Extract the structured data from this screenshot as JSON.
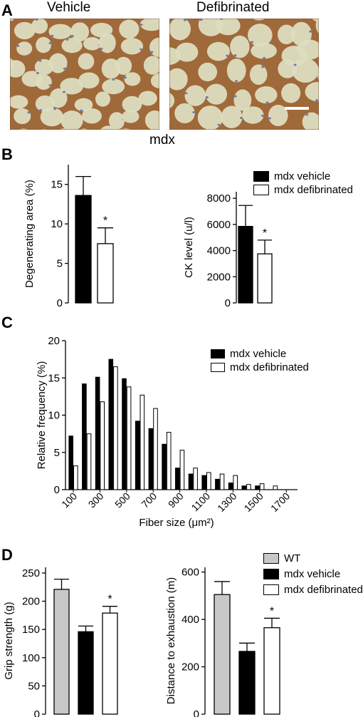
{
  "panels": {
    "a": "A",
    "b": "B",
    "c": "C",
    "d": "D"
  },
  "micrographs": {
    "left_title": "Vehicle",
    "right_title": "Defibrinated",
    "caption": "mdx",
    "colors": {
      "background": "#ddddc0",
      "membrane": "#a0693a",
      "nuclei": "#6f79ad"
    }
  },
  "legend_b": [
    "mdx vehicle",
    "mdx defibrinated"
  ],
  "legend_c": [
    "mdx vehicle",
    "mdx defibrinated"
  ],
  "legend_d": [
    "WT",
    "mdx vehicle",
    "mdx defibrinated"
  ],
  "colors": {
    "wt": "#c8c8c8",
    "vehicle": "#000000",
    "defibrinated": "#ffffff"
  },
  "chart_data": [
    {
      "id": "b1",
      "type": "bar",
      "ylabel": "Degenerating area (%)",
      "ylim": [
        0,
        17.5
      ],
      "yticks": [
        0,
        5,
        10,
        15
      ],
      "series": [
        {
          "name": "mdx vehicle",
          "values": [
            13.6
          ]
        },
        {
          "name": "mdx defibrinated",
          "values": [
            7.5
          ]
        }
      ],
      "errors": [
        2.4,
        2.0
      ],
      "annotations": [
        "",
        "*"
      ]
    },
    {
      "id": "b2",
      "type": "bar",
      "ylabel": "CK level (u/l)",
      "ylim": [
        0,
        8500
      ],
      "yticks": [
        0,
        2000,
        4000,
        6000,
        8000
      ],
      "series": [
        {
          "name": "mdx vehicle",
          "values": [
            5850
          ]
        },
        {
          "name": "mdx defibrinated",
          "values": [
            3750
          ]
        }
      ],
      "errors": [
        1600,
        1050
      ],
      "annotations": [
        "",
        "*"
      ]
    },
    {
      "id": "c",
      "type": "bar",
      "xlabel": "Fiber size (μm²)",
      "ylabel": "Relative frequency (%)",
      "ylim": [
        0,
        20
      ],
      "yticks": [
        0,
        5,
        10,
        15,
        20
      ],
      "categories": [
        100,
        200,
        300,
        400,
        500,
        600,
        700,
        800,
        900,
        1000,
        1100,
        1200,
        1300,
        1400,
        1500,
        1600,
        1700
      ],
      "tick_labels": [
        "100",
        "300",
        "500",
        "700",
        "900",
        "1100",
        "1300",
        "1500",
        "1700"
      ],
      "series": [
        {
          "name": "mdx vehicle",
          "values": [
            7.2,
            14.2,
            15.1,
            17.5,
            14.9,
            9.2,
            8.2,
            6.1,
            2.9,
            2.1,
            1.9,
            1.4,
            0.9,
            0.5,
            0.5,
            0,
            0
          ]
        },
        {
          "name": "mdx defibrinated",
          "values": [
            3.2,
            7.5,
            11.8,
            16.5,
            13.8,
            12.7,
            10.9,
            7.7,
            5.3,
            2.9,
            2.3,
            2.1,
            1.9,
            0.7,
            0.8,
            0.5,
            0
          ]
        }
      ]
    },
    {
      "id": "d1",
      "type": "bar",
      "ylabel": "Grip strength (g)",
      "ylim": [
        0,
        260
      ],
      "yticks": [
        0,
        50,
        100,
        150,
        200,
        250
      ],
      "series": [
        {
          "name": "WT",
          "values": [
            221
          ]
        },
        {
          "name": "mdx vehicle",
          "values": [
            146
          ]
        },
        {
          "name": "mdx defibrinated",
          "values": [
            179
          ]
        }
      ],
      "errors": [
        18,
        10,
        12
      ],
      "annotations": [
        "",
        "",
        "*"
      ]
    },
    {
      "id": "d2",
      "type": "bar",
      "ylabel": "Distance to exhaustion (m)",
      "ylim": [
        0,
        620
      ],
      "yticks": [
        0,
        200,
        400,
        600
      ],
      "series": [
        {
          "name": "WT",
          "values": [
            505
          ]
        },
        {
          "name": "mdx vehicle",
          "values": [
            265
          ]
        },
        {
          "name": "mdx defibrinated",
          "values": [
            365
          ]
        }
      ],
      "errors": [
        55,
        35,
        40
      ],
      "annotations": [
        "",
        "",
        "*"
      ]
    }
  ]
}
